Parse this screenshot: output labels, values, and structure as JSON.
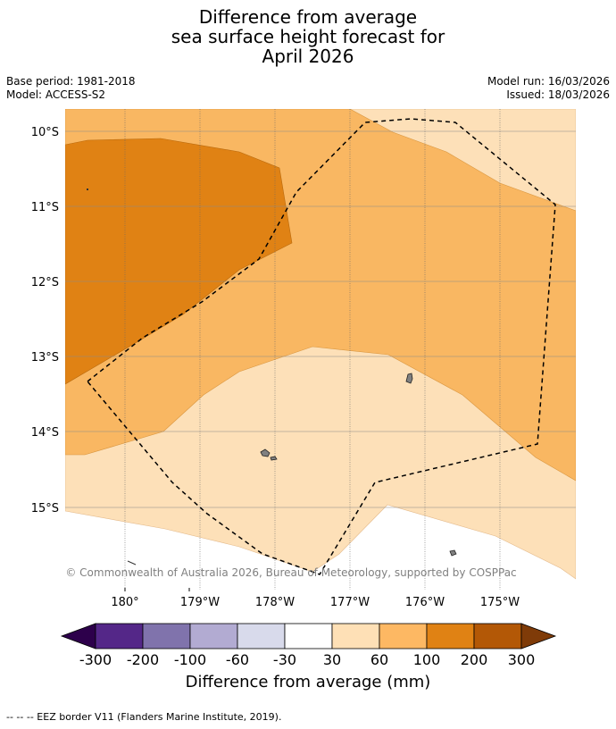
{
  "title": {
    "line1": "Difference from average",
    "line2": "sea surface height forecast for",
    "line3": "April 2026"
  },
  "meta": {
    "base_period": "Base period: 1981-2018",
    "model": "Model: ACCESS-S2",
    "model_run": "Model run: 16/03/2026",
    "issued": "Issued: 18/03/2026"
  },
  "map": {
    "lat_labels": [
      "10°S",
      "11°S",
      "12°S",
      "13°S",
      "14°S",
      "15°S"
    ],
    "lon_labels": [
      "180°",
      "179°W",
      "178°W",
      "177°W",
      "176°W",
      "175°W"
    ],
    "copyright": "© Commonwealth of Australia 2026, Bureau of Meteorology, supported by COSPPac",
    "layers": [
      {
        "name": "30 to 60 mm",
        "color": "#fde0b8"
      },
      {
        "name": "60 to 100 mm",
        "color": "#f9b762"
      },
      {
        "name": "100 to 200 mm",
        "color": "#e08214"
      }
    ],
    "land_color": "#808080"
  },
  "colorbar": {
    "title": "Difference from average (mm)",
    "ticks": [
      "-300",
      "-200",
      "-100",
      "-60",
      "-30",
      "30",
      "60",
      "100",
      "200",
      "300"
    ],
    "colors": [
      "#2d004b",
      "#542788",
      "#8073ac",
      "#b2abd2",
      "#d8daeb",
      "#ffffff",
      "#fee0b6",
      "#fdb863",
      "#e08214",
      "#b35806",
      "#7f3b08"
    ]
  },
  "footer": {
    "legend": "-- -- -- EEZ border V11 (Flanders Marine Institute, 2019)."
  }
}
